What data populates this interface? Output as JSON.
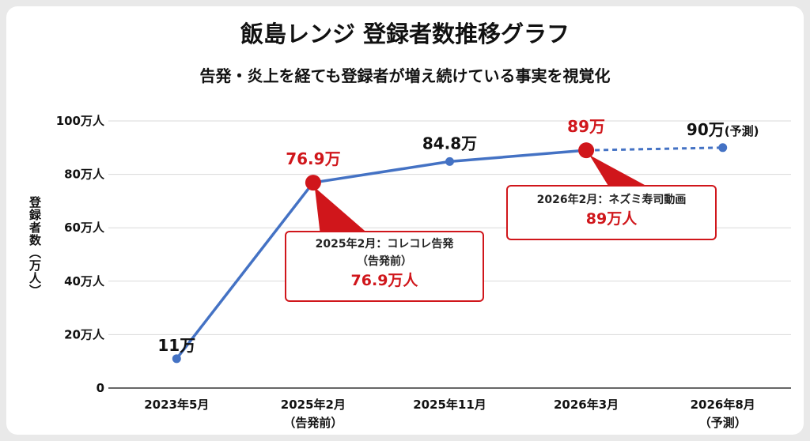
{
  "title": "飯島レンジ 登録者数推移グラフ",
  "subtitle": "告発・炎上を経ても登録者が増え続けている事実を視覚化",
  "chart_data": {
    "type": "line",
    "categories": [
      "2023年5月",
      "2025年2月",
      "2025年11月",
      "2026年3月",
      "2026年8月"
    ],
    "category_sublabels": [
      "",
      "（告発前）",
      "",
      "",
      "（予測）"
    ],
    "series": [
      {
        "values": [
          11,
          76.9,
          84.8,
          89,
          90
        ]
      }
    ],
    "projected_from_index": 3,
    "data_labels": [
      "11万",
      "76.9万",
      "84.8万",
      "89万",
      "90万"
    ],
    "data_label_suffixes": [
      "",
      "",
      "",
      "",
      "(予測)"
    ],
    "highlighted_indices": [
      1,
      3
    ],
    "ylabel": "登録者数（万人）",
    "ylim": [
      0,
      100
    ],
    "yticks": [
      0,
      20,
      40,
      60,
      80,
      100
    ],
    "ytick_labels": [
      "0",
      "20万人",
      "40万人",
      "60万人",
      "80万人",
      "100万人"
    ],
    "grid": true,
    "colors": {
      "line": "#4472c4",
      "highlight": "#d0161b",
      "grid": "#d9d9d9",
      "text": "#111111"
    },
    "annotations": [
      {
        "point_index": 1,
        "lines": [
          "2025年2月：コレコレ告発",
          "（告発前）"
        ],
        "value_text": "76.9万人"
      },
      {
        "point_index": 3,
        "lines": [
          "2026年2月：ネズミ寿司動画"
        ],
        "value_text": "89万人"
      }
    ]
  }
}
